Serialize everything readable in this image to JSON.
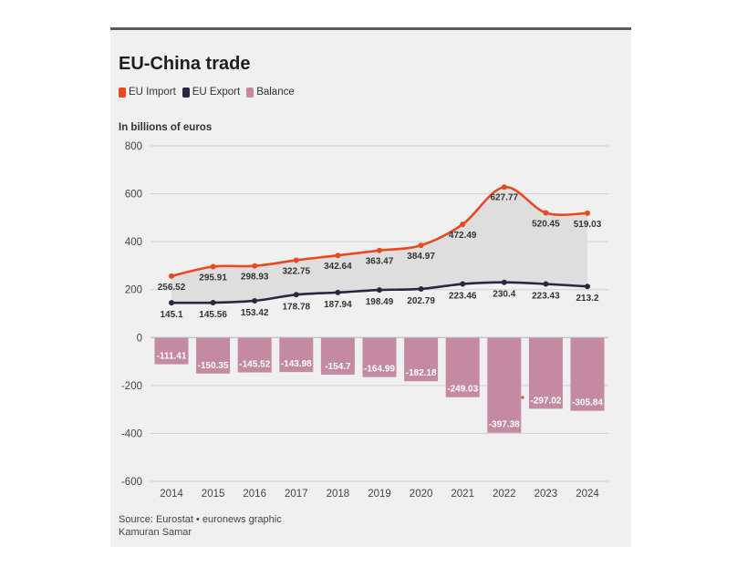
{
  "colors": {
    "import": "#e8491e",
    "export": "#2e2542",
    "balance": "#c48aa1",
    "area": "#dcdcdc",
    "grid": "#cfcfcf"
  },
  "header": {
    "top_text": ""
  },
  "chart_data": {
    "type": "line+bar",
    "title": "EU-China trade",
    "ylabel": "In billions of euros",
    "xlabel": "",
    "ylim": [
      -600,
      800
    ],
    "yticks": [
      800,
      600,
      400,
      200,
      0,
      -200,
      -400,
      -600
    ],
    "grid": true,
    "legend_position": "top-left",
    "categories": [
      "2014",
      "2015",
      "2016",
      "2017",
      "2018",
      "2019",
      "2020",
      "2021",
      "2022",
      "2023",
      "2024"
    ],
    "series": [
      {
        "name": "EU Import",
        "type": "line",
        "color": "#e8491e",
        "values": [
          256.52,
          295.91,
          298.93,
          322.75,
          342.64,
          363.47,
          384.97,
          472.49,
          627.77,
          520.45,
          519.03
        ]
      },
      {
        "name": "EU Export",
        "type": "line",
        "color": "#2e2542",
        "values": [
          145.1,
          145.56,
          153.42,
          178.78,
          187.94,
          198.49,
          202.79,
          223.46,
          230.4,
          223.43,
          213.2
        ]
      },
      {
        "name": "Balance",
        "type": "bar",
        "color": "#c48aa1",
        "values": [
          -111.41,
          -150.35,
          -145.52,
          -143.98,
          -154.7,
          -164.99,
          -182.18,
          -249.03,
          -397.38,
          -297.02,
          -305.84
        ]
      }
    ]
  },
  "footer": {
    "source": "Source: Eurostat • euronews graphic",
    "author": "Kamuran Samar"
  }
}
